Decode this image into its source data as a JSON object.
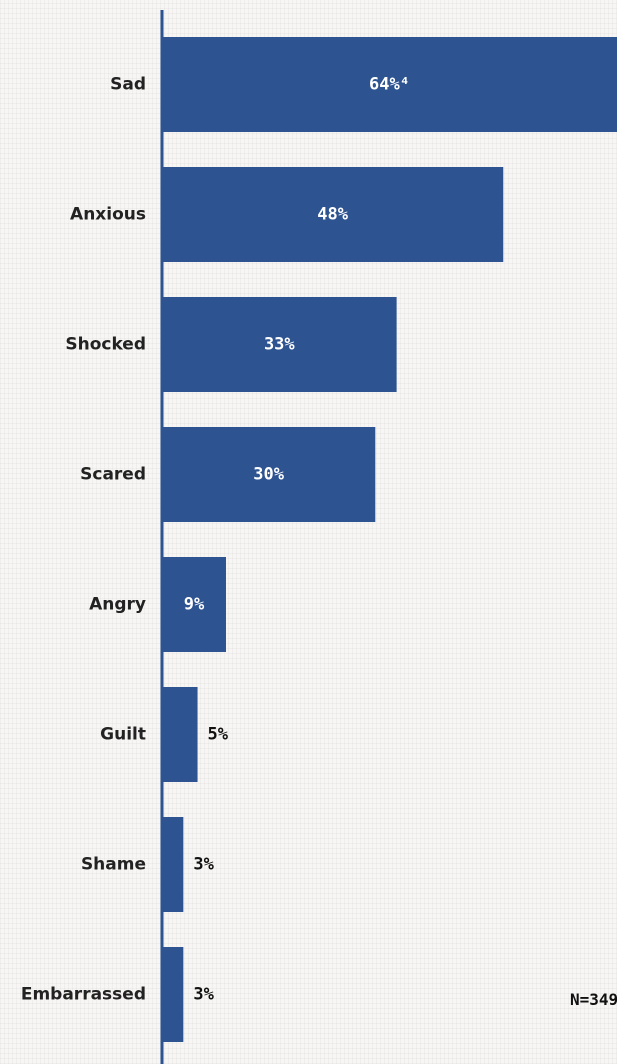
{
  "chart_data": {
    "type": "bar",
    "orientation": "horizontal",
    "categories": [
      "Sad",
      "Anxious",
      "Shocked",
      "Scared",
      "Angry",
      "Guilt",
      "Shame",
      "Embarrassed"
    ],
    "values": [
      64,
      48,
      33,
      30,
      9,
      5,
      3,
      3
    ],
    "value_labels": [
      "64%⁴",
      "48%",
      "33%",
      "30%",
      "9%",
      "5%",
      "3%",
      "3%"
    ],
    "value_unit": "%",
    "xlim": [
      0,
      64
    ],
    "grid": false,
    "legend": "none",
    "annotation": "N=349"
  },
  "colors": {
    "bar": "#2d5391",
    "axis": "#2d5391",
    "label_inside": "#ffffff",
    "label_outside": "#111111"
  }
}
